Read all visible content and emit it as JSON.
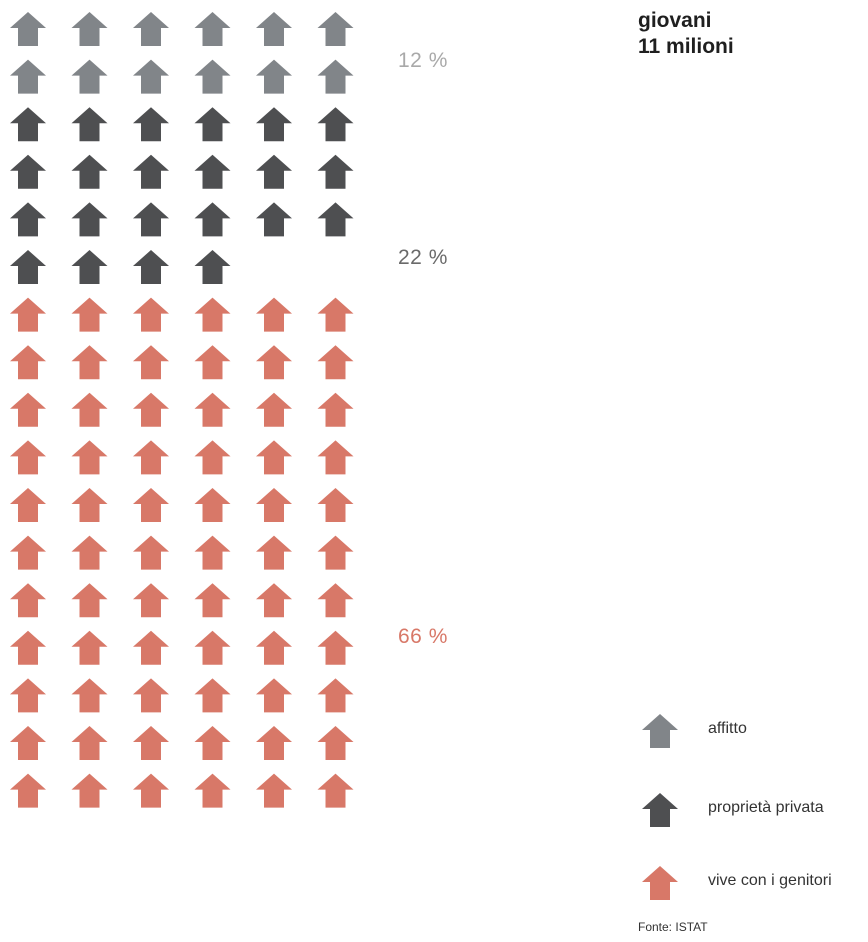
{
  "title_lines": [
    "giovani",
    "11 milioni"
  ],
  "source": "Fonte: ISTAT",
  "colors": {
    "affitto": "#818589",
    "proprieta": "#4e4f51",
    "genitori": "#d87868"
  },
  "icon": "house-icon",
  "chart_data": {
    "type": "pictogram",
    "icons_per_row": 6,
    "categories": [
      {
        "key": "affitto",
        "label": "affitto",
        "percent": 12,
        "percent_label": "12 %",
        "icons": 12,
        "color": "#818589"
      },
      {
        "key": "proprieta",
        "label": "proprietà privata",
        "percent": 22,
        "percent_label": "22 %",
        "icons": 22,
        "color": "#4e4f51"
      },
      {
        "key": "genitori",
        "label": "vive con i genitori",
        "percent": 66,
        "percent_label": "66 %",
        "icons": 66,
        "color": "#d87868"
      }
    ]
  }
}
